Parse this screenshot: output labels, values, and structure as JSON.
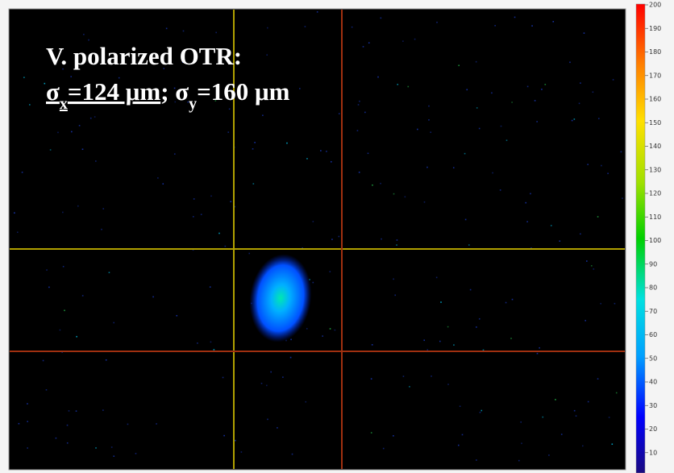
{
  "annotation": {
    "line1": "V. polarized OTR:",
    "line2": [
      {
        "text": "σ",
        "underline": true
      },
      {
        "text": "x",
        "sub": true,
        "underline": true
      },
      {
        "text": "=124 μm",
        "underline": true
      },
      {
        "text": "; σ"
      },
      {
        "text": "y",
        "sub": true
      },
      {
        "text": "=160 μm"
      }
    ]
  },
  "colorbar": {
    "range": [
      0,
      200
    ],
    "ticks": [
      10,
      20,
      30,
      40,
      50,
      60,
      70,
      80,
      90,
      100,
      110,
      120,
      130,
      140,
      150,
      160,
      170,
      180,
      190,
      200
    ]
  }
}
